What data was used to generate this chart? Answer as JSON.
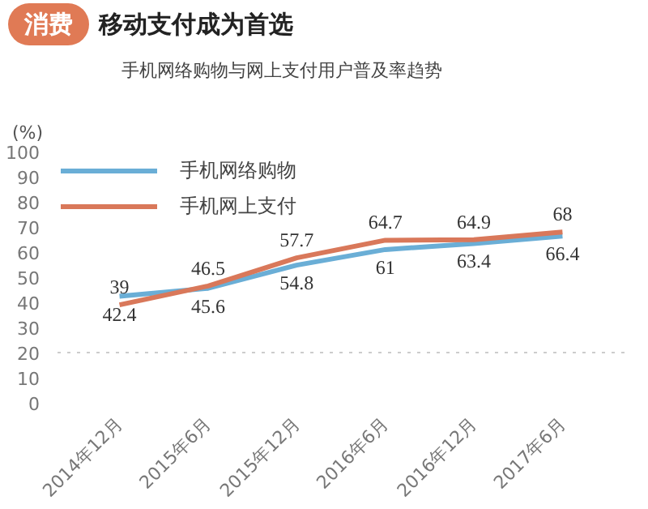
{
  "chart_data": {
    "type": "line",
    "title": "移动支付成为首选",
    "subtitle": "手机网络购物与网上支付用户普及率趋势",
    "ylabel": "(%)",
    "annotations": [
      "消费"
    ],
    "categories": [
      "2014年12月",
      "2015年6月",
      "2015年12月",
      "2016年6月",
      "2016年12月",
      "2017年6月"
    ],
    "series": [
      {
        "name": "手机网络购物",
        "color": "#6aaed6",
        "values": [
          42.4,
          45.6,
          54.8,
          61,
          63.4,
          66.4
        ]
      },
      {
        "name": "手机网上支付",
        "color": "#d9785a",
        "values": [
          39,
          46.5,
          57.7,
          64.7,
          64.9,
          68
        ]
      }
    ],
    "ylim": [
      0,
      100
    ],
    "yticks": [
      0,
      10,
      20,
      30,
      40,
      50,
      60,
      70,
      80,
      90,
      100
    ],
    "ref_lines": [
      {
        "axis": "y",
        "value": 20,
        "color": "#cccccc",
        "line_style": "dotted"
      }
    ],
    "grid": false,
    "legend": "top left",
    "data_labels": true,
    "line_style": "solid",
    "marker": "none"
  }
}
